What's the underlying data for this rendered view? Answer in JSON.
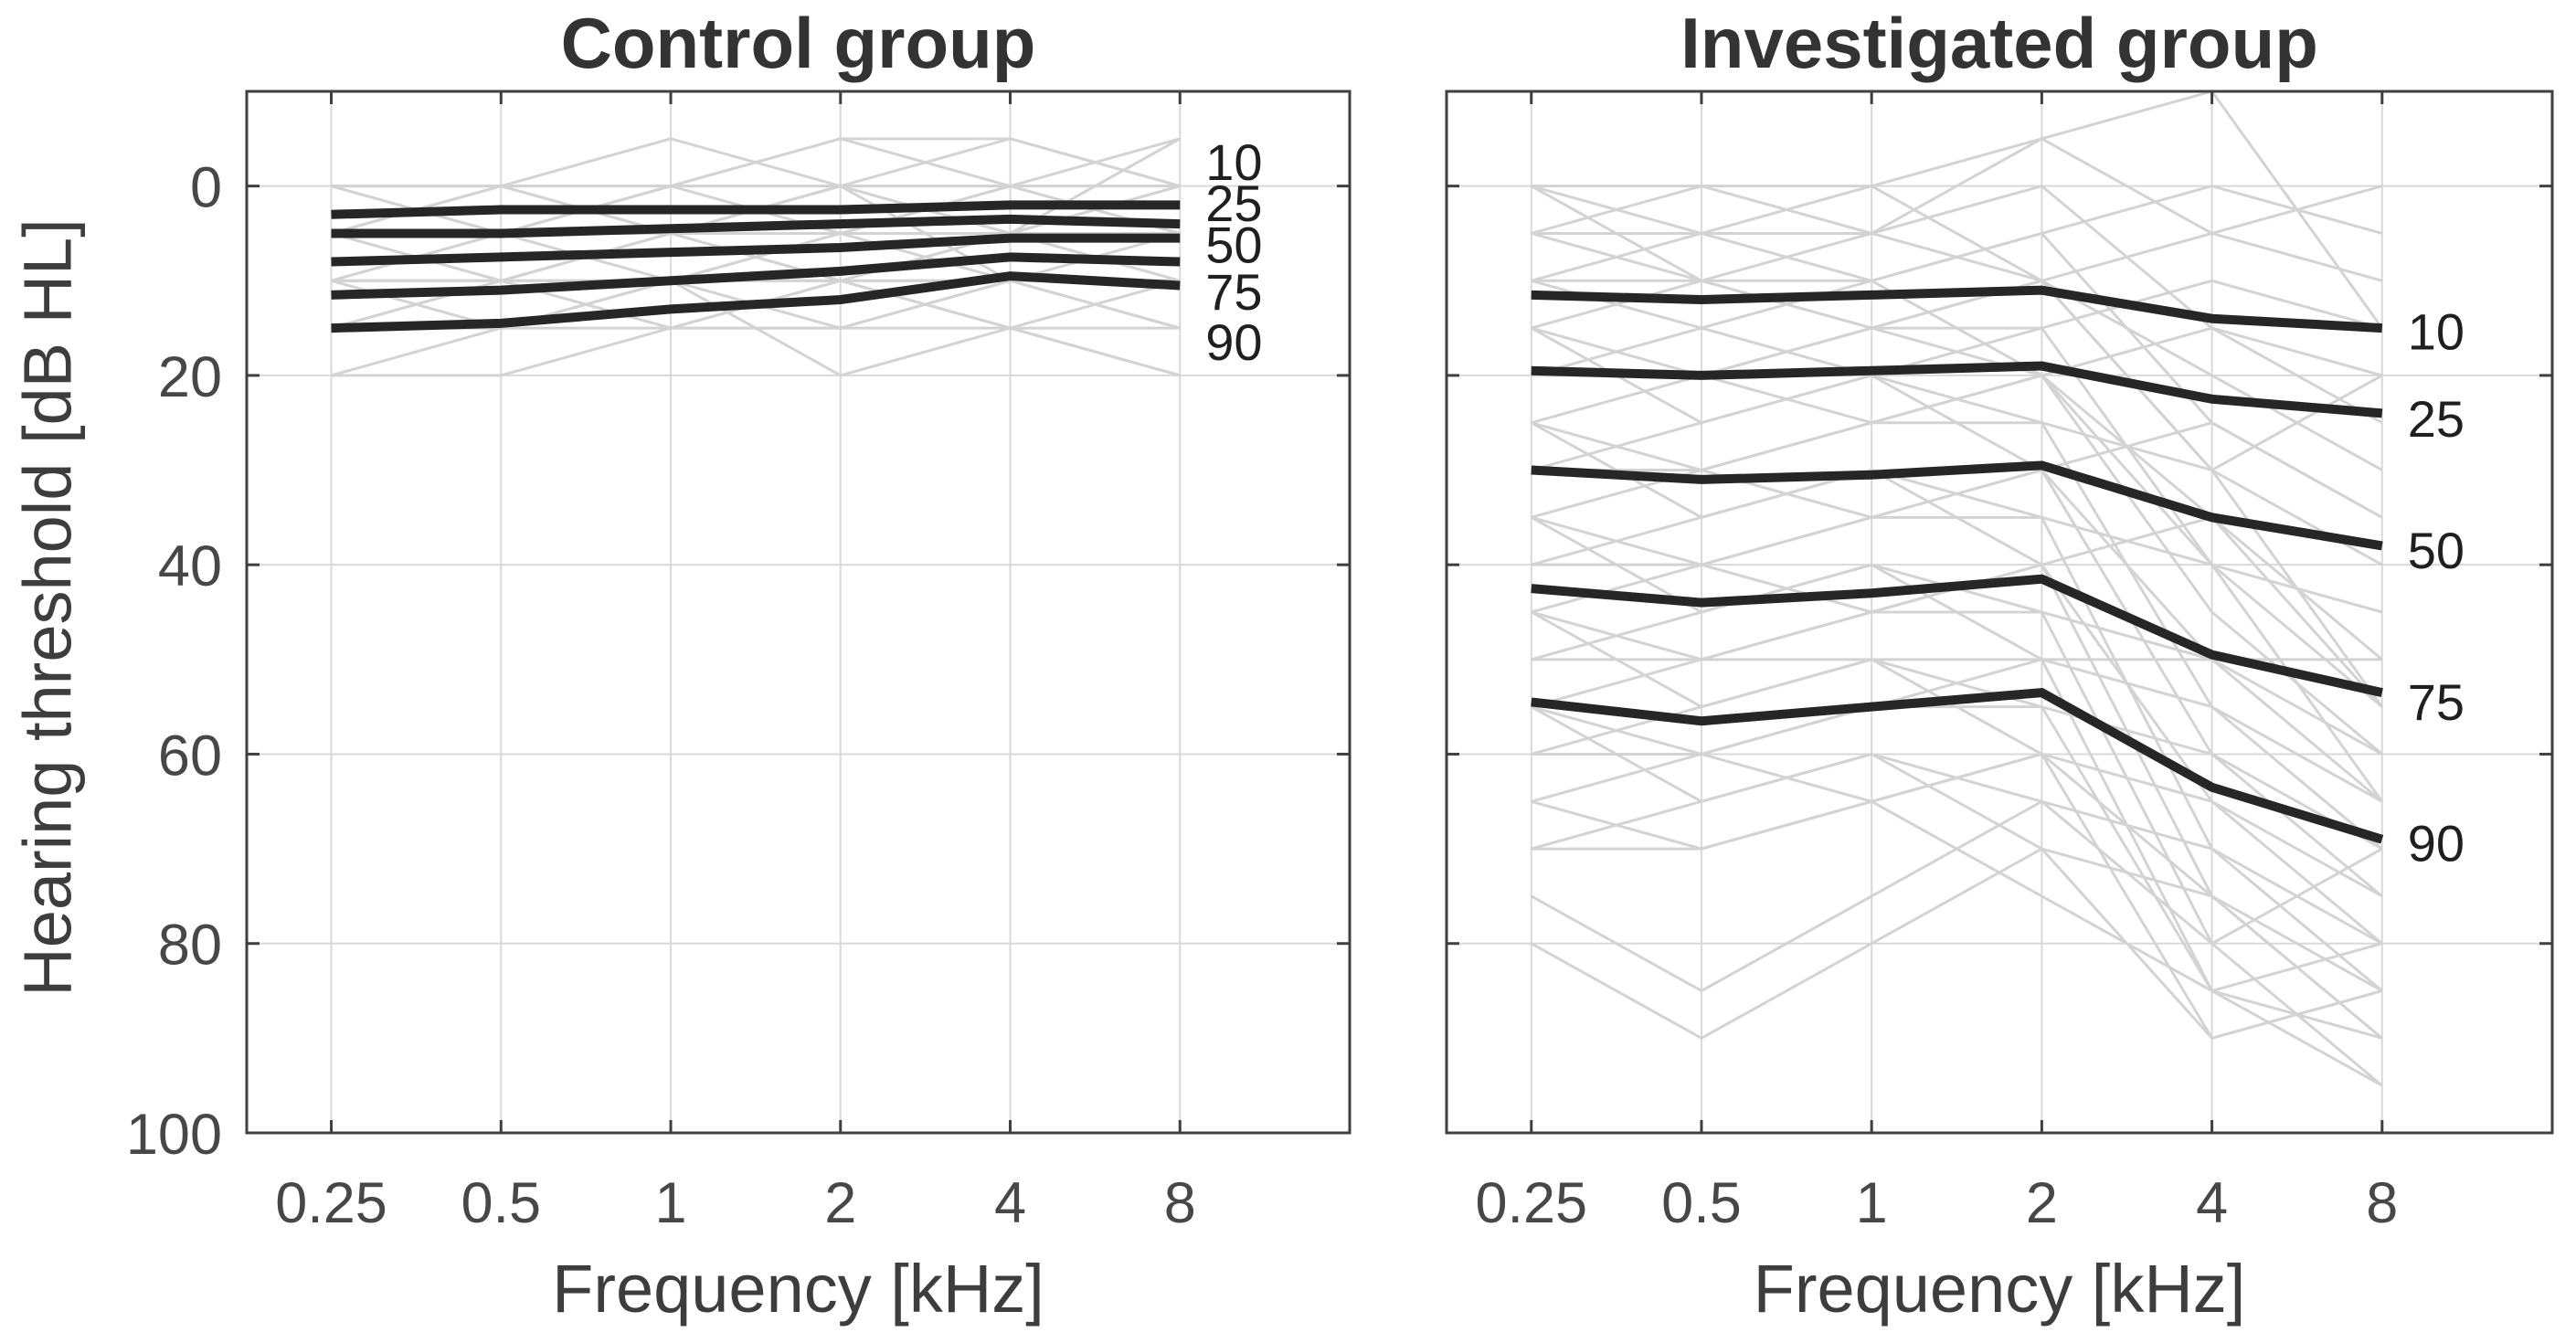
{
  "colors": {
    "background": "#ffffff",
    "frame": "#3f3f3f",
    "grid": "#d9d9d9",
    "subject_line": "#d3d3d3",
    "percentile_line": "#262626",
    "tick_label": "#474747",
    "title": "#333333",
    "axis_label": "#3d3d3d",
    "annotation": "#1f1f1f"
  },
  "chart_data": [
    {
      "type": "line",
      "title": "Control group",
      "xlabel": "Frequency [kHz]",
      "ylabel": "Hearing threshold [dB HL]",
      "xscale": "log2",
      "x": [
        0.25,
        0.5,
        1,
        2,
        4,
        8
      ],
      "xtick_labels": [
        "0.25",
        "0.5",
        "1",
        "2",
        "4",
        "8"
      ],
      "yticks": [
        0,
        20,
        40,
        60,
        80,
        100
      ],
      "ytick_labels": [
        "0",
        "20",
        "40",
        "60",
        "80",
        "100"
      ],
      "show_ytick_labels": true,
      "xlim": [
        0.177,
        16
      ],
      "ylim": [
        -10,
        100
      ],
      "y_axis_reversed": true,
      "grid": true,
      "legend_position": "labels-right-of-lines",
      "series": [
        {
          "name": "10",
          "values": [
            3,
            2.5,
            2.5,
            2.5,
            2,
            2
          ]
        },
        {
          "name": "25",
          "values": [
            5,
            5,
            4.5,
            4,
            3.5,
            4
          ]
        },
        {
          "name": "50",
          "values": [
            8,
            7.5,
            7,
            6.5,
            5.5,
            5.5
          ]
        },
        {
          "name": "75",
          "values": [
            11.5,
            11,
            10,
            9,
            7.5,
            8
          ]
        },
        {
          "name": "90",
          "values": [
            15,
            14.5,
            13,
            12,
            9.5,
            10.5
          ]
        }
      ],
      "series_label_positions_db": [
        -2.5,
        1.8,
        6.2,
        11.2,
        16.5
      ],
      "individual_traces": [
        [
          0,
          0,
          0,
          0,
          -5,
          0
        ],
        [
          5,
          0,
          0,
          -5,
          0,
          0
        ],
        [
          0,
          5,
          0,
          0,
          0,
          -5
        ],
        [
          5,
          5,
          5,
          0,
          0,
          5
        ],
        [
          10,
          5,
          5,
          5,
          0,
          0
        ],
        [
          0,
          0,
          5,
          5,
          5,
          0
        ],
        [
          5,
          10,
          5,
          5,
          5,
          5
        ],
        [
          10,
          10,
          10,
          5,
          5,
          5
        ],
        [
          15,
          10,
          10,
          10,
          5,
          10
        ],
        [
          5,
          5,
          10,
          10,
          10,
          5
        ],
        [
          10,
          15,
          10,
          5,
          10,
          10
        ],
        [
          15,
          15,
          15,
          10,
          10,
          10
        ],
        [
          20,
          15,
          10,
          15,
          10,
          15
        ],
        [
          10,
          10,
          15,
          15,
          15,
          10
        ],
        [
          15,
          10,
          5,
          10,
          15,
          15
        ],
        [
          20,
          20,
          15,
          15,
          10,
          10
        ],
        [
          0,
          5,
          5,
          10,
          5,
          0
        ],
        [
          5,
          0,
          5,
          0,
          5,
          10
        ],
        [
          10,
          5,
          0,
          5,
          0,
          5
        ],
        [
          15,
          15,
          10,
          20,
          15,
          20
        ],
        [
          0,
          0,
          -5,
          0,
          5,
          -5
        ],
        [
          5,
          5,
          0,
          -5,
          -5,
          0
        ],
        [
          10,
          10,
          5,
          0,
          10,
          15
        ],
        [
          5,
          10,
          15,
          10,
          15,
          20
        ]
      ]
    },
    {
      "type": "line",
      "title": "Investigated group",
      "xlabel": "Frequency [kHz]",
      "ylabel": "",
      "xscale": "log2",
      "x": [
        0.25,
        0.5,
        1,
        2,
        4,
        8
      ],
      "xtick_labels": [
        "0.25",
        "0.5",
        "1",
        "2",
        "4",
        "8"
      ],
      "yticks": [
        0,
        20,
        40,
        60,
        80,
        100
      ],
      "ytick_labels": [
        "0",
        "20",
        "40",
        "60",
        "80",
        "100"
      ],
      "show_ytick_labels": false,
      "xlim": [
        0.177,
        16
      ],
      "ylim": [
        -10,
        100
      ],
      "y_axis_reversed": true,
      "grid": true,
      "legend_position": "labels-right-of-lines",
      "series": [
        {
          "name": "10",
          "values": [
            11.5,
            12,
            11.5,
            11,
            14,
            15
          ]
        },
        {
          "name": "25",
          "values": [
            19.5,
            20,
            19.5,
            19,
            22.5,
            24
          ]
        },
        {
          "name": "50",
          "values": [
            30,
            31,
            30.5,
            29.5,
            35,
            38
          ]
        },
        {
          "name": "75",
          "values": [
            42.5,
            44,
            43,
            41.5,
            49.5,
            53.5
          ]
        },
        {
          "name": "90",
          "values": [
            54.5,
            56.5,
            55,
            53.5,
            63.5,
            69
          ]
        }
      ],
      "series_label_positions_db": [
        15.4,
        24.6,
        38.5,
        54.5,
        69.4
      ],
      "individual_traces": [
        [
          0,
          0,
          5,
          -5,
          5,
          10
        ],
        [
          5,
          0,
          0,
          -5,
          -10,
          15
        ],
        [
          5,
          5,
          10,
          5,
          0,
          5
        ],
        [
          10,
          5,
          5,
          0,
          15,
          20
        ],
        [
          0,
          10,
          5,
          10,
          5,
          0
        ],
        [
          10,
          10,
          15,
          10,
          20,
          30
        ],
        [
          15,
          10,
          10,
          5,
          25,
          35
        ],
        [
          10,
          15,
          20,
          15,
          10,
          15
        ],
        [
          15,
          20,
          15,
          10,
          30,
          40
        ],
        [
          20,
          15,
          10,
          20,
          15,
          25
        ],
        [
          20,
          20,
          25,
          20,
          35,
          50
        ],
        [
          25,
          20,
          15,
          15,
          40,
          55
        ],
        [
          15,
          25,
          20,
          25,
          30,
          20
        ],
        [
          25,
          30,
          25,
          20,
          45,
          60
        ],
        [
          30,
          25,
          20,
          30,
          25,
          35
        ],
        [
          30,
          30,
          35,
          30,
          50,
          65
        ],
        [
          35,
          30,
          25,
          25,
          55,
          70
        ],
        [
          25,
          35,
          30,
          35,
          40,
          45
        ],
        [
          35,
          40,
          35,
          30,
          60,
          75
        ],
        [
          40,
          35,
          30,
          40,
          35,
          55
        ],
        [
          40,
          40,
          45,
          40,
          65,
          80
        ],
        [
          45,
          40,
          35,
          35,
          70,
          85
        ],
        [
          35,
          45,
          40,
          45,
          50,
          60
        ],
        [
          45,
          50,
          45,
          40,
          75,
          90
        ],
        [
          50,
          45,
          40,
          50,
          55,
          65
        ],
        [
          50,
          50,
          50,
          50,
          50,
          50
        ],
        [
          55,
          50,
          45,
          45,
          80,
          95
        ],
        [
          45,
          55,
          50,
          55,
          60,
          70
        ],
        [
          55,
          60,
          55,
          50,
          85,
          80
        ],
        [
          60,
          55,
          50,
          60,
          65,
          75
        ],
        [
          60,
          60,
          65,
          60,
          75,
          85
        ],
        [
          65,
          60,
          55,
          55,
          85,
          90
        ],
        [
          55,
          65,
          60,
          65,
          70,
          80
        ],
        [
          65,
          70,
          65,
          60,
          90,
          85
        ],
        [
          70,
          65,
          60,
          70,
          75,
          90
        ],
        [
          70,
          70,
          65,
          75,
          85,
          95
        ],
        [
          75,
          85,
          75,
          65,
          80,
          70
        ],
        [
          80,
          90,
          80,
          70,
          90,
          85
        ],
        [
          5,
          10,
          15,
          20,
          40,
          65
        ],
        [
          0,
          5,
          0,
          10,
          30,
          55
        ]
      ]
    }
  ]
}
